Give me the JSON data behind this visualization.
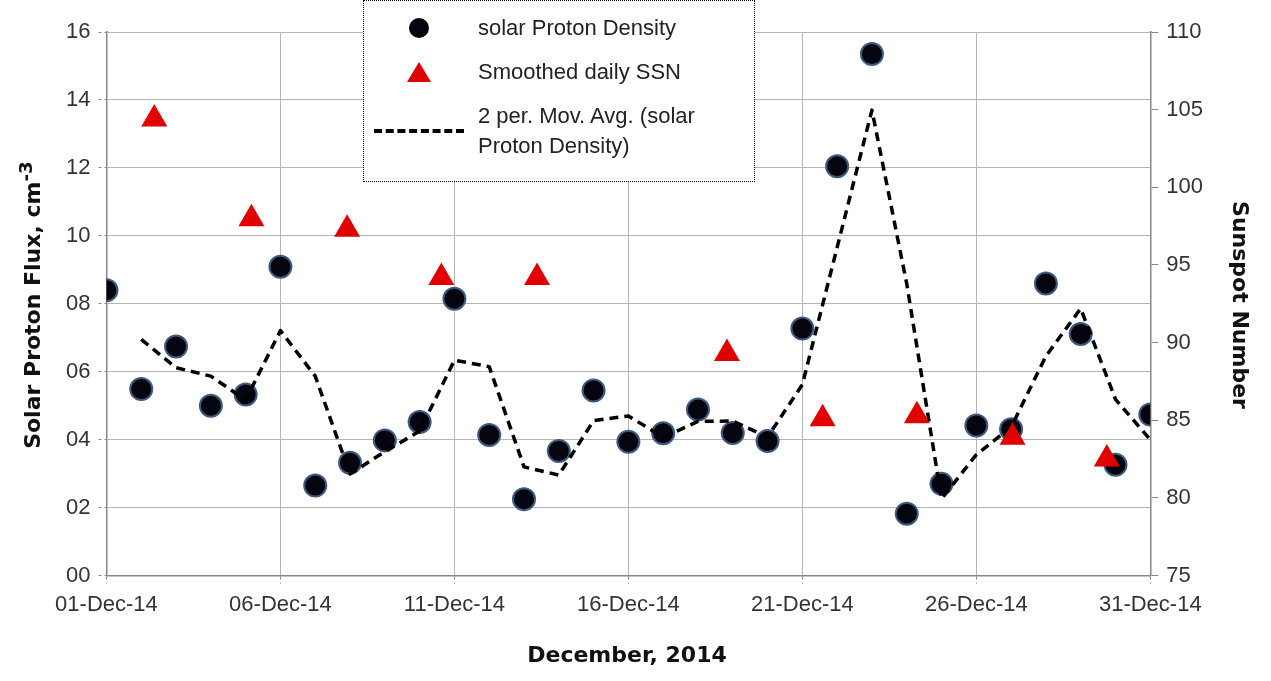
{
  "chart_data": {
    "type": "scatter",
    "xlabel": "December, 2014",
    "ylabel": "Solar Proton Flux, cm$^{-3}$",
    "y2label": "Sunspot Number",
    "xlim": [
      "2014-12-01",
      "2014-12-31"
    ],
    "xticks": [
      {
        "value": "2014-12-01",
        "label": "01-Dec-14"
      },
      {
        "value": "2014-12-06",
        "label": "06-Dec-14"
      },
      {
        "value": "2014-12-11",
        "label": "11-Dec-14"
      },
      {
        "value": "2014-12-16",
        "label": "16-Dec-14"
      },
      {
        "value": "2014-12-21",
        "label": "21-Dec-14"
      },
      {
        "value": "2014-12-26",
        "label": "26-Dec-14"
      },
      {
        "value": "2014-12-31",
        "label": "31-Dec-14"
      }
    ],
    "ylim": [
      0,
      16
    ],
    "yticks": [
      {
        "value": 0,
        "label": "00"
      },
      {
        "value": 2,
        "label": "02"
      },
      {
        "value": 4,
        "label": "04"
      },
      {
        "value": 6,
        "label": "06"
      },
      {
        "value": 8,
        "label": "08"
      },
      10,
      12,
      14,
      16
    ],
    "y2lim": [
      75,
      110
    ],
    "y2ticks": [
      75,
      80,
      85,
      90,
      95,
      100,
      105,
      110
    ],
    "grid": true,
    "legend": "top",
    "series": [
      {
        "name": "solar Proton Density",
        "type": "scatter",
        "marker": "circle",
        "color": "#05050f",
        "x": [
          "2014-12-01",
          "2014-12-02",
          "2014-12-03",
          "2014-12-04",
          "2014-12-05",
          "2014-12-06",
          "2014-12-07",
          "2014-12-08",
          "2014-12-09",
          "2014-12-10",
          "2014-12-11",
          "2014-12-12",
          "2014-12-13",
          "2014-12-14",
          "2014-12-15",
          "2014-12-16",
          "2014-12-17",
          "2014-12-18",
          "2014-12-19",
          "2014-12-20",
          "2014-12-21",
          "2014-12-22",
          "2014-12-23",
          "2014-12-24",
          "2014-12-25",
          "2014-12-26",
          "2014-12-27",
          "2014-12-28",
          "2014-12-29",
          "2014-12-30",
          "2014-12-31"
        ],
        "values": [
          8.4,
          5.49,
          6.74,
          5.0,
          5.33,
          9.09,
          2.65,
          3.32,
          3.98,
          4.52,
          8.15,
          4.14,
          2.25,
          3.67,
          5.45,
          3.94,
          4.19,
          4.89,
          4.2,
          3.96,
          7.27,
          12.05,
          15.35,
          1.82,
          2.7,
          4.42,
          4.31,
          8.6,
          7.11,
          3.26,
          4.74
        ]
      },
      {
        "name": "Smoothed daily SSN",
        "type": "scatter",
        "marker": "triangle",
        "axis": "y2",
        "color": "#e00000",
        "x": [
          "2014-12-02T09:00",
          "2014-12-05T04:00",
          "2014-12-07T22:00",
          "2014-12-10T15:00",
          "2014-12-13T09:00",
          "2014-12-18T20:00",
          "2014-12-21T14:00",
          "2014-12-24T07:00",
          "2014-12-27T01:00",
          "2014-12-29T18:00"
        ],
        "values": [
          104.4,
          97.97,
          97.3,
          94.2,
          94.2,
          89.3,
          85.1,
          85.3,
          83.9,
          82.5
        ]
      },
      {
        "name": "2 per. Mov. Avg. (solar Proton Density)",
        "type": "line",
        "marker": "none",
        "line_style": "dashed",
        "color": "#000000",
        "x": [
          "2014-12-02",
          "2014-12-03",
          "2014-12-04",
          "2014-12-05",
          "2014-12-06",
          "2014-12-07",
          "2014-12-08",
          "2014-12-09",
          "2014-12-10",
          "2014-12-11",
          "2014-12-12",
          "2014-12-13",
          "2014-12-14",
          "2014-12-15",
          "2014-12-16",
          "2014-12-17",
          "2014-12-18",
          "2014-12-19",
          "2014-12-20",
          "2014-12-21",
          "2014-12-22",
          "2014-12-23",
          "2014-12-24",
          "2014-12-25",
          "2014-12-26",
          "2014-12-27",
          "2014-12-28",
          "2014-12-29",
          "2014-12-30",
          "2014-12-31"
        ],
        "values": [
          6.95,
          6.12,
          5.87,
          5.17,
          7.21,
          5.87,
          2.99,
          3.65,
          4.25,
          6.34,
          6.15,
          3.2,
          2.96,
          4.56,
          4.7,
          4.07,
          4.54,
          4.55,
          4.08,
          5.62,
          9.66,
          13.7,
          8.59,
          2.26,
          3.56,
          4.37,
          6.46,
          7.86,
          5.19,
          4.0
        ]
      }
    ]
  }
}
